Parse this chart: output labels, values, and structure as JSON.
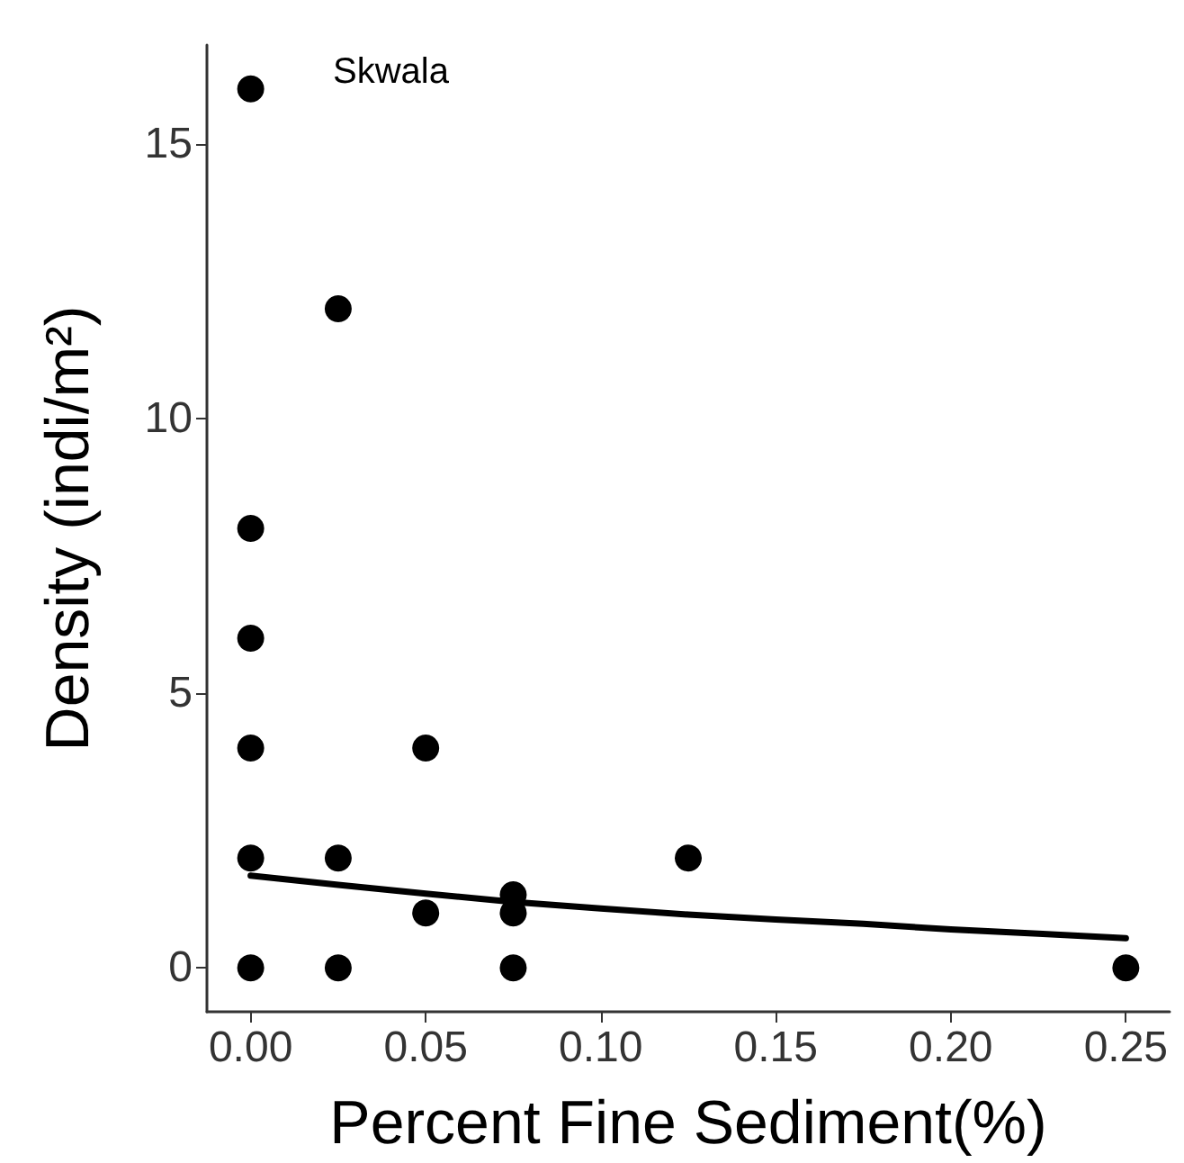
{
  "chart_data": {
    "type": "scatter",
    "title": "Skwala",
    "xlabel": "Percent Fine Sediment(%)",
    "ylabel": "Density (indi/m²)",
    "xlim": [
      -0.0125,
      0.2625
    ],
    "xticks": [
      {
        "value": 0,
        "label": "0.00"
      },
      {
        "value": 0.05,
        "label": "0.05"
      },
      {
        "value": 0.1,
        "label": "0.10"
      },
      {
        "value": 0.15,
        "label": "0.15"
      },
      {
        "value": 0.2,
        "label": "0.20"
      },
      {
        "value": 0.25,
        "label": "0.25"
      }
    ],
    "ylim": [
      -0.8,
      16.8
    ],
    "yticks": [
      0,
      5,
      10,
      15
    ],
    "grid": false,
    "marker": "circle",
    "series": [
      {
        "color": "#000000",
        "x": [
          0,
          0,
          0,
          0,
          0,
          0,
          0.025,
          0.025,
          0.025,
          0.05,
          0.05,
          0.075,
          0.075,
          0.075,
          0.125,
          0.25
        ],
        "values": [
          16,
          8,
          6,
          4,
          2,
          0,
          12,
          2,
          0,
          4,
          1,
          1.33,
          1,
          0,
          2,
          0
        ]
      },
      {
        "type": "line",
        "color": "#000000",
        "marker": "none",
        "line_style": "solid",
        "x": [
          0,
          0.025,
          0.05,
          0.075,
          0.1,
          0.125,
          0.15,
          0.175,
          0.2,
          0.225,
          0.25
        ],
        "values": [
          1.68,
          1.51,
          1.35,
          1.2,
          1.08,
          0.97,
          0.88,
          0.8,
          0.7,
          0.62,
          0.54
        ]
      }
    ]
  }
}
